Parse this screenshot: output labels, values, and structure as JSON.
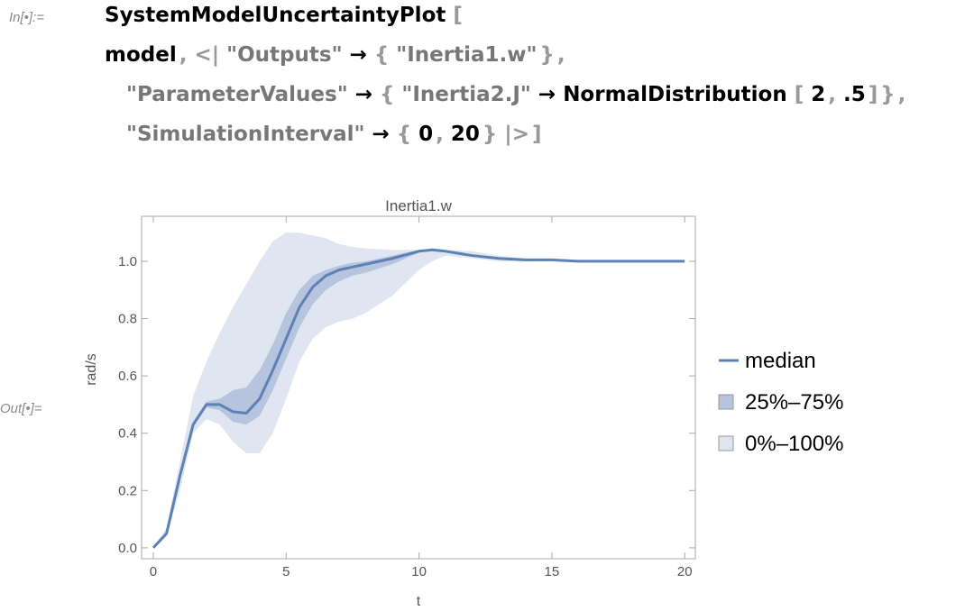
{
  "input_label": "In[•]:=",
  "output_label": "Out[•]=",
  "code_lines": [
    [
      {
        "text": "SystemModelUncertaintyPlot",
        "color": "#000000"
      },
      {
        "text": "[",
        "color": "#999999"
      }
    ],
    [
      {
        "text": "model",
        "color": "#000000"
      },
      {
        "text": ",",
        "color": "#999999"
      },
      {
        "text": "<|",
        "color": "#999999"
      },
      {
        "text": "\"Outputs\"",
        "color": "#777777"
      },
      {
        "text": "→",
        "color": "#000000"
      },
      {
        "text": "{",
        "color": "#999999"
      },
      {
        "text": "\"Inertia1.w\"",
        "color": "#777777"
      },
      {
        "text": "}",
        "color": "#999999"
      },
      {
        "text": ",",
        "color": "#999999"
      }
    ],
    [
      {
        "text": "\"ParameterValues\"",
        "color": "#777777"
      },
      {
        "text": "→",
        "color": "#000000"
      },
      {
        "text": "{",
        "color": "#999999"
      },
      {
        "text": "\"Inertia2.J\"",
        "color": "#777777"
      },
      {
        "text": "→",
        "color": "#000000"
      },
      {
        "text": "NormalDistribution",
        "color": "#000000"
      },
      {
        "text": "[",
        "color": "#999999"
      },
      {
        "text": "2",
        "color": "#000000"
      },
      {
        "text": ",",
        "color": "#999999"
      },
      {
        "text": ".5",
        "color": "#000000"
      },
      {
        "text": "]",
        "color": "#999999"
      },
      {
        "text": "}",
        "color": "#999999"
      },
      {
        "text": ",",
        "color": "#999999"
      }
    ],
    [
      {
        "text": "\"SimulationInterval\"",
        "color": "#777777"
      },
      {
        "text": "→",
        "color": "#000000"
      },
      {
        "text": "{",
        "color": "#999999"
      },
      {
        "text": "0",
        "color": "#000000"
      },
      {
        "text": ",",
        "color": "#999999"
      },
      {
        "text": "20",
        "color": "#000000"
      },
      {
        "text": "}",
        "color": "#999999"
      },
      {
        "text": "|>",
        "color": "#999999"
      },
      {
        "text": "]",
        "color": "#999999"
      }
    ]
  ],
  "chart_data": {
    "type": "line",
    "title": "Inertia1.w",
    "x_label": "t",
    "y_label": "rad/s",
    "x": [
      0,
      0.5,
      1,
      1.5,
      2,
      2.5,
      3,
      3.5,
      4,
      4.5,
      5,
      5.5,
      6,
      6.5,
      7,
      7.5,
      8,
      9,
      10,
      10.5,
      11,
      12,
      13,
      14,
      15,
      16,
      17,
      18,
      19,
      20
    ],
    "series": [
      {
        "name": "0%–100%",
        "color": "#e0e6f1",
        "lower": [
          0,
          0.04,
          0.2,
          0.4,
          0.45,
          0.43,
          0.37,
          0.33,
          0.33,
          0.4,
          0.52,
          0.65,
          0.73,
          0.77,
          0.79,
          0.8,
          0.82,
          0.88,
          0.97,
          1,
          1.02,
          1.01,
          1,
          1,
          1,
          1,
          1,
          1,
          1,
          1
        ],
        "upper": [
          0,
          0.07,
          0.3,
          0.53,
          0.65,
          0.75,
          0.84,
          0.92,
          1,
          1.07,
          1.1,
          1.1,
          1.09,
          1.08,
          1.06,
          1.05,
          1.045,
          1.04,
          1.04,
          1.04,
          1.04,
          1.035,
          1.02,
          1.01,
          1.005,
          1,
          1,
          1,
          1,
          1
        ]
      },
      {
        "name": "25%–75%",
        "color": "#b7c4de",
        "lower": [
          0,
          0.05,
          0.24,
          0.42,
          0.49,
          0.48,
          0.44,
          0.43,
          0.46,
          0.55,
          0.66,
          0.77,
          0.85,
          0.9,
          0.93,
          0.95,
          0.96,
          0.99,
          1.03,
          1.04,
          1.035,
          1.02,
          1.01,
          1.005,
          1.005,
          1,
          1,
          1,
          1,
          1
        ],
        "upper": [
          0,
          0.05,
          0.26,
          0.44,
          0.51,
          0.52,
          0.55,
          0.56,
          0.62,
          0.71,
          0.82,
          0.9,
          0.95,
          0.97,
          0.985,
          0.995,
          1,
          1.02,
          1.04,
          1.04,
          1.035,
          1.02,
          1.01,
          1.005,
          1.005,
          1,
          1,
          1,
          1,
          1
        ]
      },
      {
        "name": "median",
        "color": "#5e81b5",
        "values": [
          0,
          0.05,
          0.25,
          0.43,
          0.5,
          0.5,
          0.475,
          0.47,
          0.52,
          0.62,
          0.73,
          0.84,
          0.91,
          0.95,
          0.97,
          0.98,
          0.99,
          1.01,
          1.035,
          1.04,
          1.035,
          1.02,
          1.01,
          1.005,
          1.005,
          1,
          1,
          1,
          1,
          1
        ]
      }
    ],
    "legend_order": [
      2,
      1,
      0
    ],
    "xlim": [
      -0.44,
      20.4
    ],
    "ylim": [
      -0.038,
      1.157
    ],
    "xticks": [
      0,
      5,
      10,
      15,
      20
    ],
    "yticks": [
      {
        "value": 0,
        "label": "0.0"
      },
      {
        "value": 0.2,
        "label": "0.2"
      },
      {
        "value": 0.4,
        "label": "0.4"
      },
      {
        "value": 0.6,
        "label": "0.6"
      },
      {
        "value": 0.8,
        "label": "0.8"
      },
      {
        "value": 1,
        "label": "1.0"
      }
    ]
  }
}
